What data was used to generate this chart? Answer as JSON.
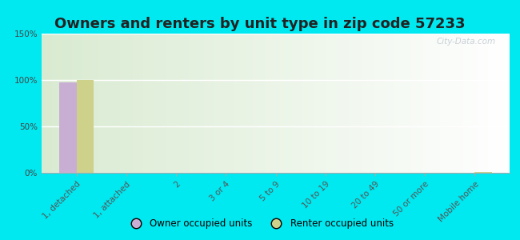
{
  "title": "Owners and renters by unit type in zip code 57233",
  "categories": [
    "1, detached",
    "1, attached",
    "2",
    "3 or 4",
    "5 to 9",
    "10 to 19",
    "20 to 49",
    "50 or more",
    "Mobile home"
  ],
  "owner_values": [
    97,
    0,
    0,
    0,
    0,
    0,
    0,
    0,
    0
  ],
  "renter_values": [
    100,
    0,
    0,
    0,
    0,
    0,
    0,
    0,
    1
  ],
  "owner_color": "#c9aed4",
  "renter_color": "#cdd18a",
  "outer_bg": "#00e8f0",
  "plot_bg_left": "#d6e8c0",
  "plot_bg_right": "#f0f8e8",
  "ylim": [
    0,
    150
  ],
  "yticks": [
    0,
    50,
    100,
    150
  ],
  "ytick_labels": [
    "0%",
    "50%",
    "100%",
    "150%"
  ],
  "bar_width": 0.35,
  "watermark": "City-Data.com",
  "legend_owner": "Owner occupied units",
  "legend_renter": "Renter occupied units",
  "title_fontsize": 13,
  "tick_fontsize": 7.5,
  "title_color": "#222222"
}
